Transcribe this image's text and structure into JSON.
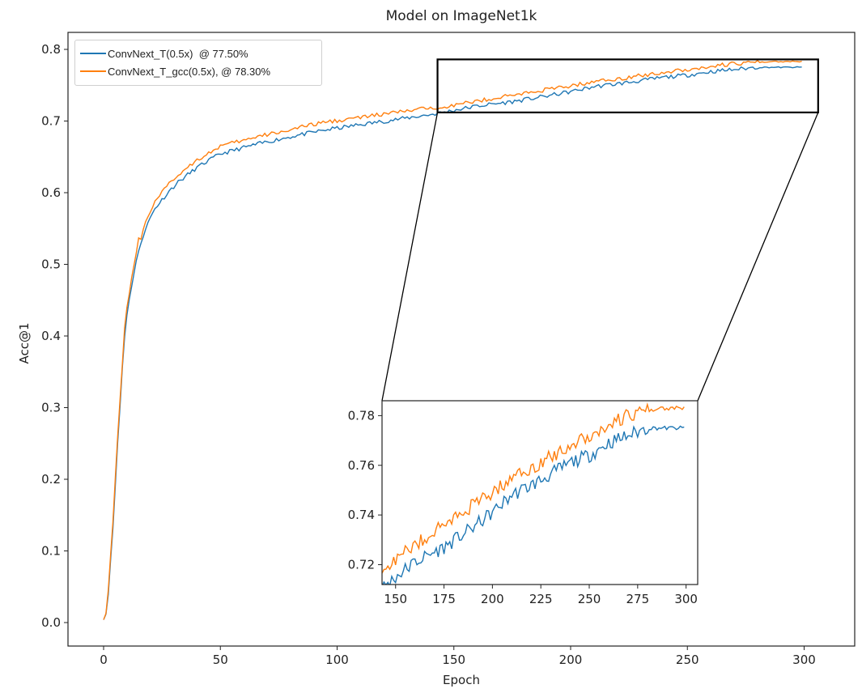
{
  "chart_data": {
    "type": "line",
    "title": "Model on ImageNet1k",
    "xlabel": "Epoch",
    "ylabel": "Acc@1",
    "xlim": [
      -15,
      322
    ],
    "ylim": [
      -0.033,
      0.822
    ],
    "xticks": [
      0,
      50,
      100,
      150,
      200,
      250,
      300
    ],
    "yticks": [
      0.0,
      0.1,
      0.2,
      0.3,
      0.4,
      0.5,
      0.6,
      0.7,
      0.8
    ],
    "ytick_labels": [
      "0.0",
      "0.1",
      "0.2",
      "0.3",
      "0.4",
      "0.5",
      "0.6",
      "0.7",
      "0.8"
    ],
    "grid": false,
    "legend_position": "upper left",
    "series": [
      {
        "name": "ConvNext_T(0.5x)  @ 77.50%",
        "color": "#1f77b4",
        "key_points": [
          [
            0,
            0.006
          ],
          [
            1,
            0.012
          ],
          [
            2,
            0.04
          ],
          [
            3,
            0.09
          ],
          [
            4,
            0.13
          ],
          [
            5,
            0.19
          ],
          [
            6,
            0.25
          ],
          [
            7,
            0.3
          ],
          [
            8,
            0.355
          ],
          [
            9,
            0.4
          ],
          [
            10,
            0.43
          ],
          [
            12,
            0.47
          ],
          [
            14,
            0.505
          ],
          [
            16,
            0.53
          ],
          [
            18,
            0.55
          ],
          [
            20,
            0.565
          ],
          [
            22,
            0.578
          ],
          [
            25,
            0.59
          ],
          [
            28,
            0.602
          ],
          [
            32,
            0.615
          ],
          [
            36,
            0.625
          ],
          [
            40,
            0.635
          ],
          [
            45,
            0.645
          ],
          [
            50,
            0.654
          ],
          [
            60,
            0.663
          ],
          [
            70,
            0.671
          ],
          [
            80,
            0.678
          ],
          [
            94,
            0.687
          ],
          [
            110,
            0.695
          ],
          [
            125,
            0.702
          ],
          [
            142,
            0.71
          ],
          [
            150,
            0.715
          ],
          [
            160,
            0.721
          ],
          [
            175,
            0.727
          ],
          [
            190,
            0.735
          ],
          [
            200,
            0.741
          ],
          [
            210,
            0.748
          ],
          [
            225,
            0.754
          ],
          [
            240,
            0.761
          ],
          [
            250,
            0.764
          ],
          [
            260,
            0.769
          ],
          [
            270,
            0.772
          ],
          [
            280,
            0.775
          ],
          [
            290,
            0.775
          ],
          [
            299,
            0.775
          ]
        ]
      },
      {
        "name": "ConvNext_T_gcc(0.5x), @ 78.30%",
        "color": "#ff7f0e",
        "key_points": [
          [
            0,
            0.006
          ],
          [
            1,
            0.014
          ],
          [
            2,
            0.045
          ],
          [
            3,
            0.095
          ],
          [
            4,
            0.14
          ],
          [
            5,
            0.2
          ],
          [
            6,
            0.26
          ],
          [
            7,
            0.31
          ],
          [
            8,
            0.36
          ],
          [
            9,
            0.41
          ],
          [
            10,
            0.44
          ],
          [
            12,
            0.48
          ],
          [
            14,
            0.515
          ],
          [
            15,
            0.538
          ],
          [
            16,
            0.535
          ],
          [
            18,
            0.56
          ],
          [
            20,
            0.575
          ],
          [
            22,
            0.588
          ],
          [
            25,
            0.6
          ],
          [
            28,
            0.612
          ],
          [
            32,
            0.625
          ],
          [
            36,
            0.636
          ],
          [
            40,
            0.646
          ],
          [
            45,
            0.655
          ],
          [
            50,
            0.665
          ],
          [
            60,
            0.673
          ],
          [
            70,
            0.681
          ],
          [
            80,
            0.688
          ],
          [
            94,
            0.698
          ],
          [
            110,
            0.705
          ],
          [
            125,
            0.712
          ],
          [
            142,
            0.719
          ],
          [
            150,
            0.722
          ],
          [
            160,
            0.728
          ],
          [
            175,
            0.736
          ],
          [
            190,
            0.744
          ],
          [
            200,
            0.749
          ],
          [
            210,
            0.755
          ],
          [
            225,
            0.761
          ],
          [
            240,
            0.768
          ],
          [
            250,
            0.772
          ],
          [
            260,
            0.776
          ],
          [
            270,
            0.78
          ],
          [
            280,
            0.782
          ],
          [
            290,
            0.783
          ],
          [
            299,
            0.783
          ]
        ]
      }
    ],
    "inset": {
      "xlim": [
        143,
        306
      ],
      "ylim": [
        0.712,
        0.786
      ],
      "xticks": [
        150,
        175,
        200,
        225,
        250,
        275,
        300
      ],
      "yticks": [
        0.72,
        0.74,
        0.76,
        0.78
      ],
      "ytick_labels": [
        "0.72",
        "0.74",
        "0.76",
        "0.78"
      ]
    }
  },
  "legend": {
    "items": [
      {
        "label": "ConvNext_T(0.5x)  @ 77.50%",
        "color": "#1f77b4"
      },
      {
        "label": "ConvNext_T_gcc(0.5x), @ 78.30%",
        "color": "#ff7f0e"
      }
    ]
  }
}
